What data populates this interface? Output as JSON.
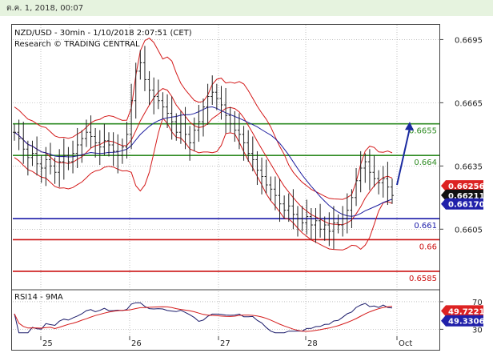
{
  "window": {
    "date_time": "ต.ค. 1, 2018, 00:07"
  },
  "chart_data": {
    "type": "candlestick",
    "title": "NZD/USD - 30min - 1/10/2018 2:07:51 (CET)",
    "subtitle": "Research © TRADING CENTRAL",
    "x_ticks": [
      "25",
      "26",
      "27",
      "28",
      "Oct"
    ],
    "y_ticks": [
      "0.6695",
      "0.6665",
      "0.6635",
      "0.6605"
    ],
    "ylim": [
      0.6577,
      0.6702
    ],
    "horizontal_levels": [
      {
        "value": 0.6655,
        "label": "0.6655",
        "color": "#2e8b22"
      },
      {
        "value": 0.664,
        "label": "0.664",
        "color": "#2e8b22"
      },
      {
        "value": 0.661,
        "label": "0.661",
        "color": "#1a1aa8"
      },
      {
        "value": 0.66,
        "label": "0.66",
        "color": "#cc1111"
      },
      {
        "value": 0.6585,
        "label": "0.6585",
        "color": "#cc1111"
      }
    ],
    "price_badges": [
      {
        "value": 0.66256,
        "label": "0.66256",
        "color": "#dd2222"
      },
      {
        "value": 0.66211,
        "label": "0.66211",
        "color": "#111111"
      },
      {
        "value": 0.6617,
        "label": "0.66170",
        "color": "#2020aa"
      }
    ],
    "close_prices": [
      0.6651,
      0.6648,
      0.6643,
      0.6639,
      0.6641,
      0.6636,
      0.6634,
      0.6638,
      0.6635,
      0.6632,
      0.6637,
      0.664,
      0.6637,
      0.6641,
      0.6645,
      0.6648,
      0.6651,
      0.6649,
      0.6646,
      0.6644,
      0.6647,
      0.6645,
      0.6642,
      0.664,
      0.6644,
      0.665,
      0.6666,
      0.668,
      0.6684,
      0.6676,
      0.6671,
      0.6668,
      0.6666,
      0.6663,
      0.666,
      0.6656,
      0.6651,
      0.6655,
      0.665,
      0.6646,
      0.6652,
      0.6656,
      0.6663,
      0.6668,
      0.667,
      0.6667,
      0.6664,
      0.6659,
      0.6655,
      0.6652,
      0.665,
      0.6646,
      0.6641,
      0.6638,
      0.6633,
      0.663,
      0.6626,
      0.6624,
      0.6621,
      0.6617,
      0.6614,
      0.6616,
      0.6612,
      0.661,
      0.6608,
      0.6611,
      0.6607,
      0.6609,
      0.6605,
      0.6607,
      0.6604,
      0.6608,
      0.6607,
      0.661,
      0.6614,
      0.662,
      0.6628,
      0.6634,
      0.6637,
      0.6632,
      0.6629,
      0.6627,
      0.6629,
      0.6625,
      0.6621
    ],
    "rsi": {
      "label": "RSI14 - 9MA",
      "y_ticks": [
        "70",
        "30"
      ],
      "ylim": [
        20,
        85
      ],
      "badges": [
        {
          "value": 49.7221,
          "label": "49.7221",
          "color": "#dd2222"
        },
        {
          "value": 49.3306,
          "label": "49.3306",
          "color": "#2020aa"
        }
      ]
    }
  }
}
